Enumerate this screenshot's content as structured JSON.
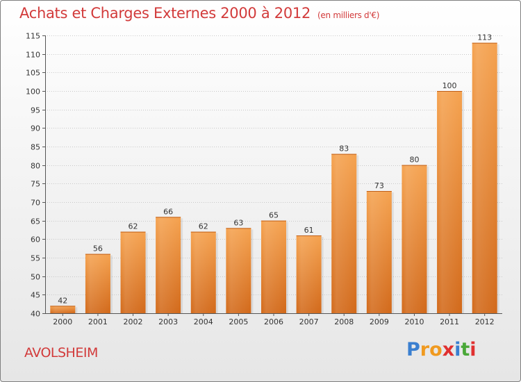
{
  "chart_data": {
    "type": "bar",
    "title": "Achats et Charges Externes 2000 à 2012",
    "unit_label": "(en milliers d'€)",
    "categories": [
      "2000",
      "2001",
      "2002",
      "2003",
      "2004",
      "2005",
      "2006",
      "2007",
      "2008",
      "2009",
      "2010",
      "2011",
      "2012"
    ],
    "values": [
      42,
      56,
      62,
      66,
      62,
      63,
      65,
      61,
      83,
      73,
      80,
      100,
      113
    ],
    "ylim": [
      40,
      115
    ],
    "yticks": [
      40,
      45,
      50,
      55,
      60,
      65,
      70,
      75,
      80,
      85,
      90,
      95,
      100,
      105,
      110,
      115
    ],
    "grid": "horizontal",
    "bar_color": "#f0a050"
  },
  "footer": {
    "commune": "AVOLSHEIM",
    "logo_letters": [
      {
        "ch": "P",
        "color": "#3a7fd0"
      },
      {
        "ch": "r",
        "color": "#f09a20"
      },
      {
        "ch": "o",
        "color": "#f09a20"
      },
      {
        "ch": "x",
        "color": "#e03030"
      },
      {
        "ch": "i",
        "color": "#3a7fd0"
      },
      {
        "ch": "t",
        "color": "#4aa838"
      },
      {
        "ch": "i",
        "color": "#e03030"
      }
    ]
  }
}
